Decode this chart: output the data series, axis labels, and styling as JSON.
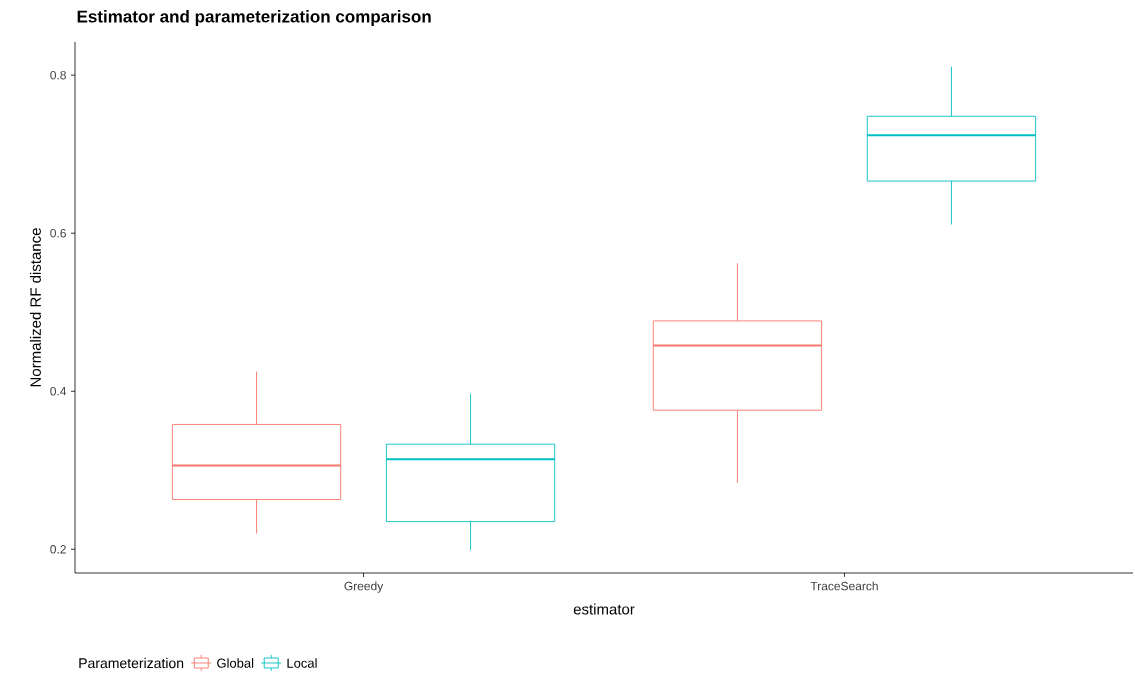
{
  "chart_data": {
    "type": "box",
    "title": "Estimator and parameterization comparison",
    "xlabel": "estimator",
    "ylabel": "Normalized RF distance",
    "legend_title": "Parameterization",
    "categories": [
      "Greedy",
      "TraceSearch"
    ],
    "series": [
      {
        "name": "Global",
        "color": "#f8766d",
        "boxes": [
          {
            "low": 0.22,
            "q1": 0.263,
            "median": 0.306,
            "q3": 0.358,
            "high": 0.425
          },
          {
            "low": 0.284,
            "q1": 0.376,
            "median": 0.458,
            "q3": 0.489,
            "high": 0.562
          }
        ]
      },
      {
        "name": "Local",
        "color": "#00bfc4",
        "boxes": [
          {
            "low": 0.199,
            "q1": 0.235,
            "median": 0.314,
            "q3": 0.333,
            "high": 0.397
          },
          {
            "low": 0.611,
            "q1": 0.666,
            "median": 0.724,
            "q3": 0.748,
            "high": 0.811
          }
        ]
      }
    ],
    "ylim": [
      0.17,
      0.842
    ],
    "yticks": [
      0.2,
      0.4,
      0.6,
      0.8
    ],
    "grid": false,
    "legend": "bottom"
  }
}
